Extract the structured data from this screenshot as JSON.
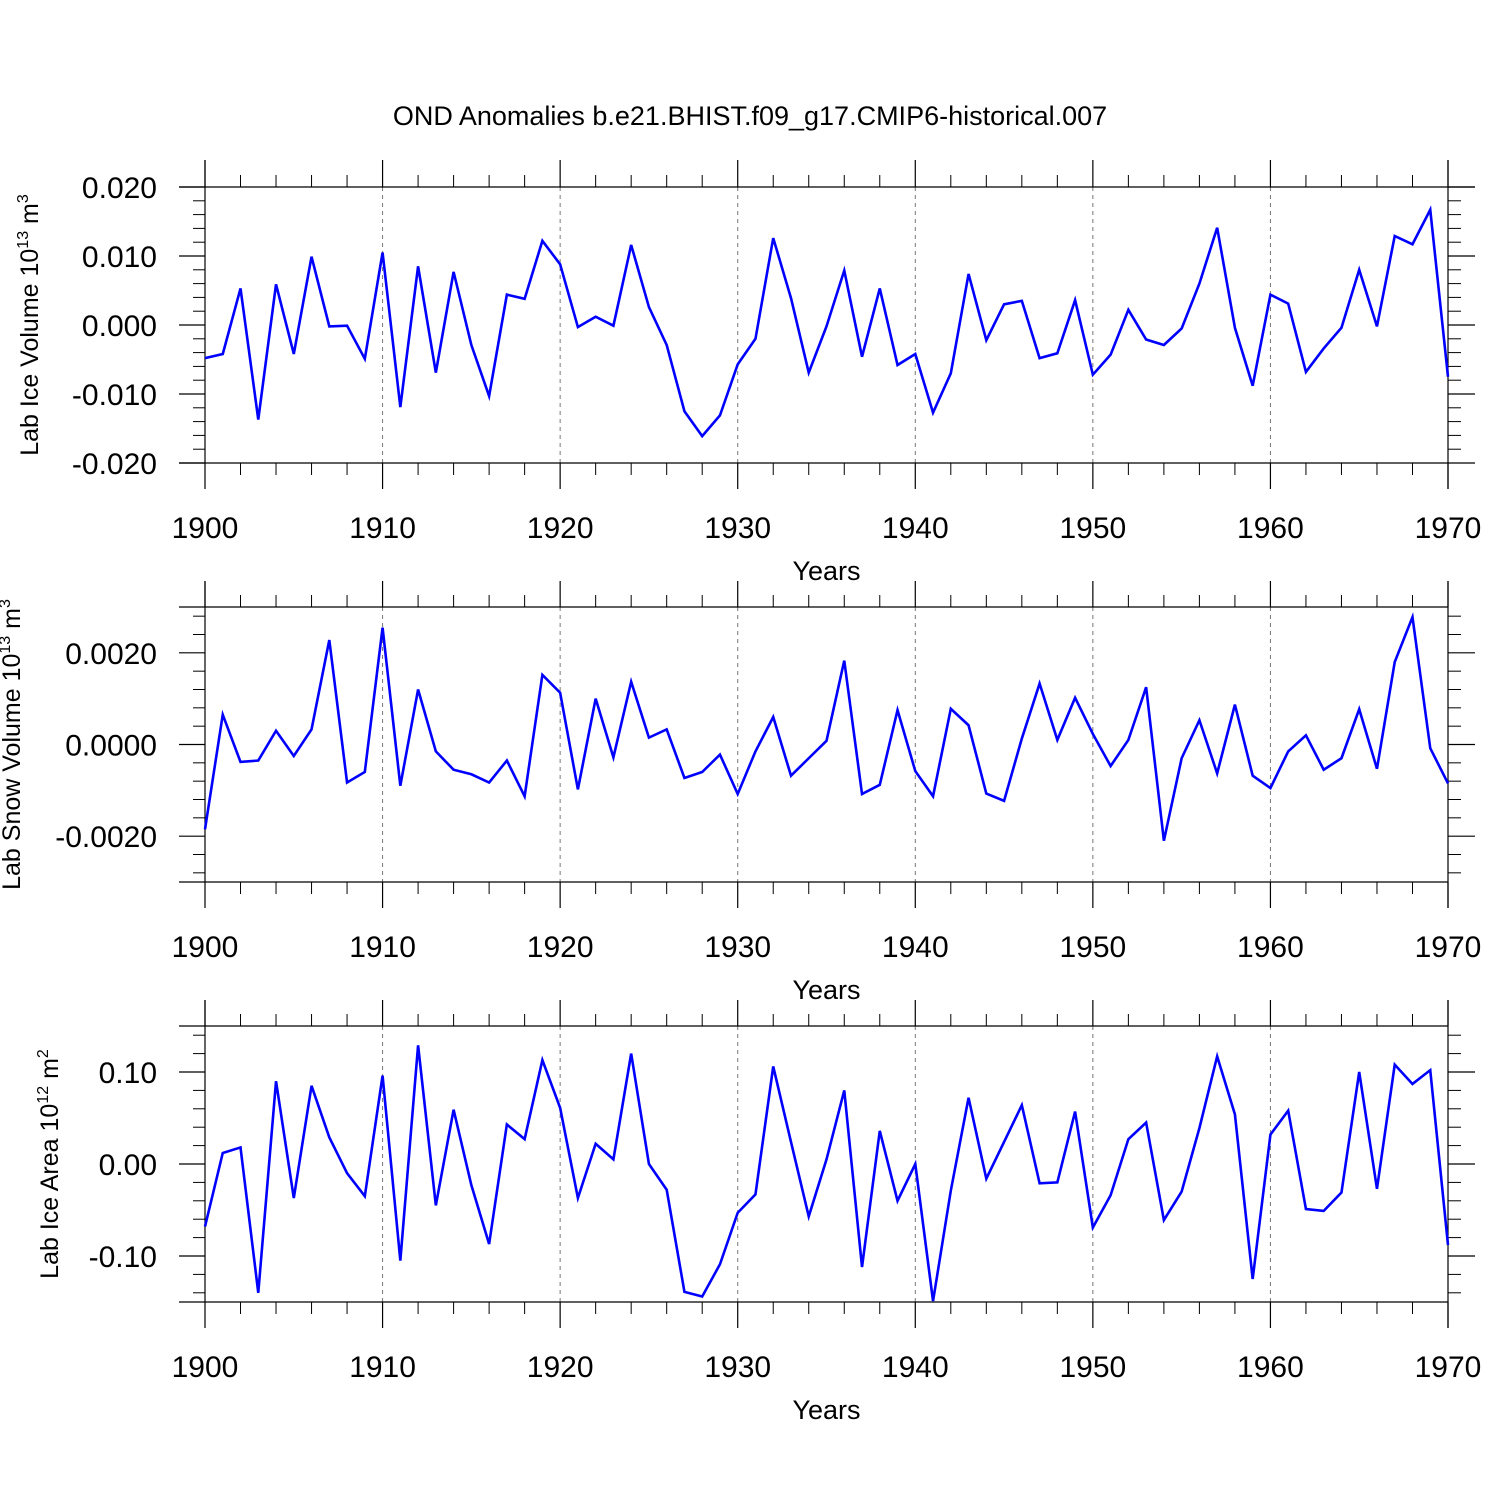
{
  "title": "OND Anomalies b.e21.BHIST.f09_g17.CMIP6-historical.007",
  "chart_data": [
    {
      "type": "line",
      "ylabel_main": "Lab Ice Volume 10",
      "ylabel_sup": "13",
      "ylabel_unit": " m",
      "ylabel_unit_sup": "3",
      "xlabel": "Years",
      "xlim": [
        1900,
        1970
      ],
      "ylim": [
        -0.02,
        0.02
      ],
      "yticks": [
        -0.02,
        -0.01,
        0.0,
        0.01,
        0.02
      ],
      "ytick_labels": [
        "-0.020",
        "-0.010",
        "0.000",
        "0.010",
        "0.020"
      ],
      "xticks": [
        1900,
        1910,
        1920,
        1930,
        1940,
        1950,
        1960,
        1970
      ],
      "xtick_labels": [
        "1900",
        "1910",
        "1920",
        "1930",
        "1940",
        "1950",
        "1960",
        "1970"
      ],
      "series": [
        {
          "name": "Lab Ice Volume",
          "color": "#0000ff",
          "x": [
            1900,
            1901,
            1902,
            1903,
            1904,
            1905,
            1906,
            1907,
            1908,
            1909,
            1910,
            1911,
            1912,
            1913,
            1914,
            1915,
            1916,
            1917,
            1918,
            1919,
            1920,
            1921,
            1922,
            1923,
            1924,
            1925,
            1926,
            1927,
            1928,
            1929,
            1930,
            1931,
            1932,
            1933,
            1934,
            1935,
            1936,
            1937,
            1938,
            1939,
            1940,
            1941,
            1942,
            1943,
            1944,
            1945,
            1946,
            1947,
            1948,
            1949,
            1950,
            1951,
            1952,
            1953,
            1954,
            1955,
            1956,
            1957,
            1958,
            1959,
            1960,
            1961,
            1962,
            1963,
            1964,
            1965,
            1966,
            1967,
            1968,
            1969,
            1970
          ],
          "values": [
            -0.0048,
            -0.0042,
            0.0053,
            -0.0137,
            0.0059,
            -0.0042,
            0.0099,
            -0.0002,
            -0.0001,
            -0.0049,
            0.0105,
            -0.0119,
            0.0085,
            -0.0069,
            0.0077,
            -0.0029,
            -0.0103,
            0.0044,
            0.0038,
            0.0122,
            0.0088,
            -0.0003,
            0.0012,
            -0.0001,
            0.0116,
            0.0026,
            -0.0029,
            -0.0125,
            -0.0161,
            -0.0131,
            -0.0057,
            -0.002,
            0.0126,
            0.0039,
            -0.0069,
            -0.0002,
            0.0079,
            -0.0046,
            0.0053,
            -0.0058,
            -0.0042,
            -0.0127,
            -0.007,
            0.0074,
            -0.0022,
            0.003,
            0.0035,
            -0.0048,
            -0.0041,
            0.0036,
            -0.0072,
            -0.0043,
            0.0022,
            -0.0021,
            -0.0029,
            -0.0005,
            0.006,
            0.0141,
            -0.0004,
            -0.0088,
            0.0044,
            0.0031,
            -0.0068,
            -0.0034,
            -0.0004,
            0.008,
            -0.0002,
            0.0129,
            0.0117,
            0.0167,
            -0.0075
          ]
        }
      ]
    },
    {
      "type": "line",
      "ylabel_main": "Lab Snow Volume 10",
      "ylabel_sup": "13",
      "ylabel_unit": " m",
      "ylabel_unit_sup": "3",
      "xlabel": "Years",
      "xlim": [
        1900,
        1970
      ],
      "ylim": [
        -0.003,
        0.003
      ],
      "yticks": [
        -0.002,
        0.0,
        0.002
      ],
      "ytick_labels": [
        "-0.0020",
        "0.0000",
        "0.0020"
      ],
      "xticks": [
        1900,
        1910,
        1920,
        1930,
        1940,
        1950,
        1960,
        1970
      ],
      "xtick_labels": [
        "1900",
        "1910",
        "1920",
        "1930",
        "1940",
        "1950",
        "1960",
        "1970"
      ],
      "series": [
        {
          "name": "Lab Snow Volume",
          "color": "#0000ff",
          "x": [
            1900,
            1901,
            1902,
            1903,
            1904,
            1905,
            1906,
            1907,
            1908,
            1909,
            1910,
            1911,
            1912,
            1913,
            1914,
            1915,
            1916,
            1917,
            1918,
            1919,
            1920,
            1921,
            1922,
            1923,
            1924,
            1925,
            1926,
            1927,
            1928,
            1929,
            1930,
            1931,
            1932,
            1933,
            1934,
            1935,
            1936,
            1937,
            1938,
            1939,
            1940,
            1941,
            1942,
            1943,
            1944,
            1945,
            1946,
            1947,
            1948,
            1949,
            1950,
            1951,
            1952,
            1953,
            1954,
            1955,
            1956,
            1957,
            1958,
            1959,
            1960,
            1961,
            1962,
            1963,
            1964,
            1965,
            1966,
            1967,
            1968,
            1969,
            1970
          ],
          "values": [
            -0.00185,
            0.00065,
            -0.00038,
            -0.00035,
            0.0003,
            -0.00025,
            0.00033,
            0.00228,
            -0.00083,
            -0.0006,
            0.00255,
            -0.0009,
            0.0012,
            -0.00015,
            -0.00055,
            -0.00065,
            -0.00083,
            -0.00035,
            -0.00113,
            0.00152,
            0.00113,
            -0.00098,
            0.001,
            -0.00028,
            0.00137,
            0.00015,
            0.00033,
            -0.00073,
            -0.0006,
            -0.00022,
            -0.00108,
            -0.00015,
            0.0006,
            -0.00068,
            -0.0003,
            8e-05,
            0.00183,
            -0.00108,
            -0.00088,
            0.00075,
            -0.00058,
            -0.00113,
            0.00078,
            0.00042,
            -0.00107,
            -0.00123,
            0.00013,
            0.00133,
            0.0001,
            0.00102,
            0.00023,
            -0.00047,
            0.0001,
            0.00125,
            -0.0021,
            -0.0003,
            0.00053,
            -0.00063,
            0.00087,
            -0.00068,
            -0.00095,
            -0.00015,
            0.0002,
            -0.00055,
            -0.0003,
            0.00077,
            -0.00053,
            0.0018,
            0.00278,
            -8e-05,
            -0.00085
          ]
        }
      ]
    },
    {
      "type": "line",
      "ylabel_main": "Lab Ice Area 10",
      "ylabel_sup": "12",
      "ylabel_unit": " m",
      "ylabel_unit_sup": "2",
      "xlabel": "Years",
      "xlim": [
        1900,
        1970
      ],
      "ylim": [
        -0.15,
        0.15
      ],
      "yticks": [
        -0.1,
        0.0,
        0.1
      ],
      "ytick_labels": [
        "-0.10",
        "0.00",
        "0.10"
      ],
      "xticks": [
        1900,
        1910,
        1920,
        1930,
        1940,
        1950,
        1960,
        1970
      ],
      "xtick_labels": [
        "1900",
        "1910",
        "1920",
        "1930",
        "1940",
        "1950",
        "1960",
        "1970"
      ],
      "series": [
        {
          "name": "Lab Ice Area",
          "color": "#0000ff",
          "x": [
            1900,
            1901,
            1902,
            1903,
            1904,
            1905,
            1906,
            1907,
            1908,
            1909,
            1910,
            1911,
            1912,
            1913,
            1914,
            1915,
            1916,
            1917,
            1918,
            1919,
            1920,
            1921,
            1922,
            1923,
            1924,
            1925,
            1926,
            1927,
            1928,
            1929,
            1930,
            1931,
            1932,
            1933,
            1934,
            1935,
            1936,
            1937,
            1938,
            1939,
            1940,
            1941,
            1942,
            1943,
            1944,
            1945,
            1946,
            1947,
            1948,
            1949,
            1950,
            1951,
            1952,
            1953,
            1954,
            1955,
            1956,
            1957,
            1958,
            1959,
            1960,
            1961,
            1962,
            1963,
            1964,
            1965,
            1966,
            1967,
            1968,
            1969,
            1970
          ],
          "values": [
            -0.068,
            0.012,
            0.018,
            -0.14,
            0.09,
            -0.037,
            0.085,
            0.029,
            -0.01,
            -0.035,
            0.096,
            -0.105,
            0.129,
            -0.045,
            0.059,
            -0.023,
            -0.087,
            0.043,
            0.027,
            0.113,
            0.061,
            -0.037,
            0.022,
            0.005,
            0.12,
            0.0,
            -0.028,
            -0.139,
            -0.144,
            -0.109,
            -0.053,
            -0.033,
            0.106,
            0.024,
            -0.057,
            0.005,
            0.08,
            -0.112,
            0.036,
            -0.04,
            0.0,
            -0.149,
            -0.029,
            0.072,
            -0.016,
            0.024,
            0.064,
            -0.021,
            -0.02,
            0.057,
            -0.069,
            -0.034,
            0.027,
            0.045,
            -0.061,
            -0.03,
            0.039,
            0.117,
            0.054,
            -0.125,
            0.032,
            0.058,
            -0.049,
            -0.051,
            -0.031,
            0.1,
            -0.027,
            0.108,
            0.087,
            0.102,
            -0.088
          ]
        }
      ]
    }
  ]
}
